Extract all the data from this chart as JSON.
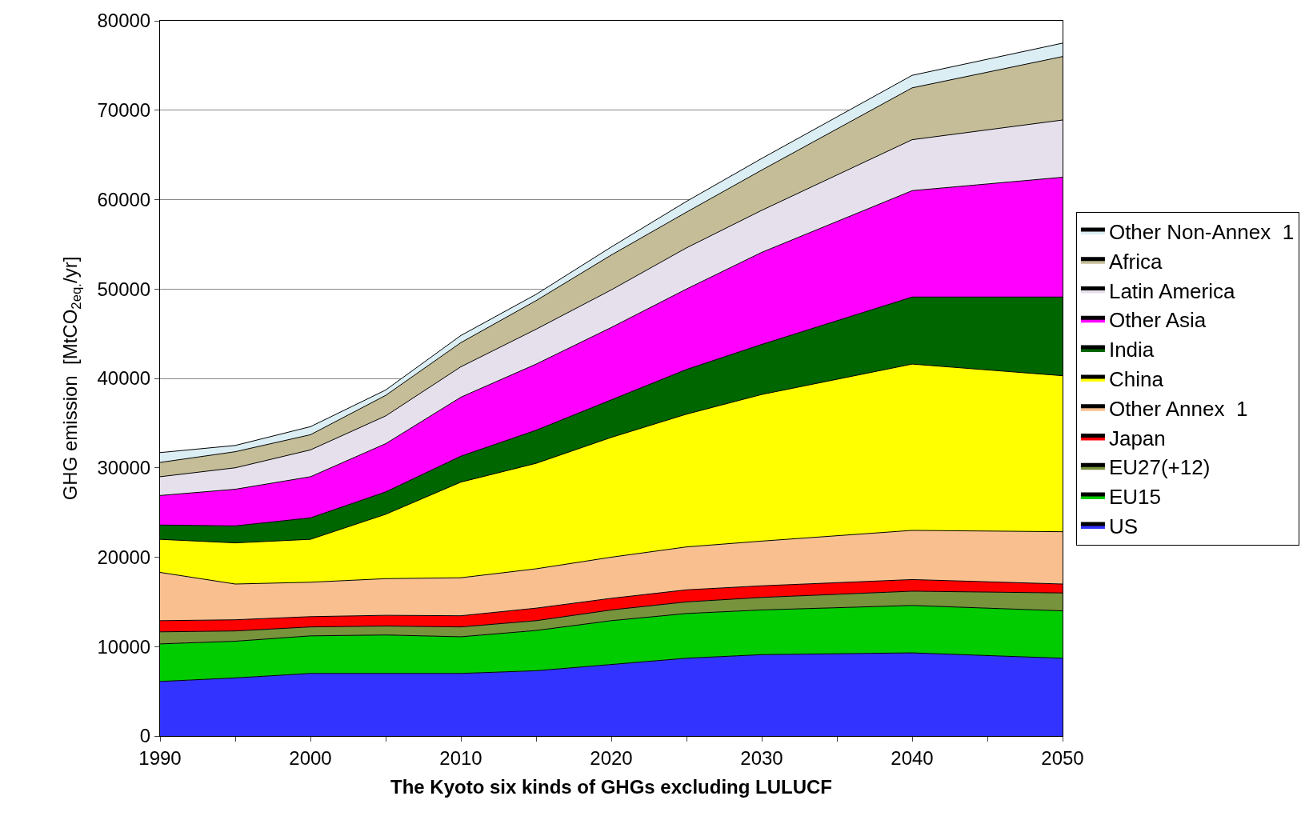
{
  "chart_data": {
    "type": "area",
    "stacked": true,
    "xlabel": "The Kyoto six kinds of GHGs excluding LULUCF",
    "ylabel": "GHG emission  [MtCO$_{2eq.}$/yr]",
    "x": [
      1990,
      1995,
      2000,
      2005,
      2010,
      2015,
      2020,
      2025,
      2030,
      2040,
      2050
    ],
    "xlim": [
      1990,
      2050
    ],
    "xticks": [
      1990,
      {
        "value": 1995,
        "label": null
      },
      2000,
      {
        "value": 2005,
        "label": null
      },
      2010,
      {
        "value": 2015,
        "label": null
      },
      2020,
      {
        "value": 2025,
        "label": null
      },
      2030,
      {
        "value": 2035,
        "label": null
      },
      2040,
      {
        "value": 2045,
        "label": null
      },
      2050
    ],
    "ylim": [
      0,
      80000
    ],
    "yticks": [
      0,
      10000,
      20000,
      30000,
      40000,
      50000,
      60000,
      70000,
      80000
    ],
    "grid": "y",
    "legend": "right",
    "series": [
      {
        "name": "US",
        "color": "#3333ff",
        "values": [
          6100,
          6500,
          7000,
          7000,
          7000,
          7300,
          8000,
          8700,
          9100,
          9300,
          8700
        ]
      },
      {
        "name": "EU15",
        "color": "#00cc00",
        "values": [
          4200,
          4100,
          4200,
          4300,
          4100,
          4500,
          4900,
          5000,
          5000,
          5300,
          5300
        ]
      },
      {
        "name": "EU27(+12)",
        "color": "#77933c",
        "values": [
          1350,
          1150,
          1000,
          1000,
          1100,
          1100,
          1200,
          1300,
          1400,
          1600,
          2000
        ]
      },
      {
        "name": "Japan",
        "color": "#ff0000",
        "values": [
          1250,
          1250,
          1150,
          1200,
          1250,
          1400,
          1300,
          1350,
          1300,
          1300,
          1000
        ]
      },
      {
        "name": "Other Annex  1",
        "color": "#f9bf8f",
        "values": [
          5400,
          4000,
          3850,
          4100,
          4250,
          4400,
          4600,
          4800,
          5000,
          5500,
          5850
        ]
      },
      {
        "name": "China",
        "color": "#ffff00",
        "values": [
          3700,
          4600,
          4800,
          7200,
          10700,
          11800,
          13400,
          14850,
          16400,
          18600,
          17450
        ]
      },
      {
        "name": "India",
        "color": "#006600",
        "values": [
          1600,
          1900,
          2400,
          2500,
          2900,
          3700,
          4200,
          5000,
          5600,
          7500,
          8800
        ]
      },
      {
        "name": "Other Asia",
        "color": "#ff00ff",
        "values": [
          3300,
          4100,
          4600,
          5400,
          6600,
          7400,
          8100,
          9000,
          10300,
          11900,
          13400
        ]
      },
      {
        "name": "Latin America",
        "color": "#e6e0ec",
        "values": [
          2100,
          2400,
          3000,
          3100,
          3400,
          3900,
          4200,
          4600,
          4700,
          5700,
          6400
        ]
      },
      {
        "name": "Africa",
        "color": "#c4bd97",
        "values": [
          1600,
          1800,
          1700,
          2300,
          2700,
          3200,
          3900,
          4000,
          4500,
          5800,
          7100
        ]
      },
      {
        "name": "Other Non-Annex  1",
        "color": "#dbeef4",
        "values": [
          1100,
          700,
          900,
          600,
          800,
          700,
          900,
          1200,
          1300,
          1400,
          1500
        ]
      }
    ]
  }
}
